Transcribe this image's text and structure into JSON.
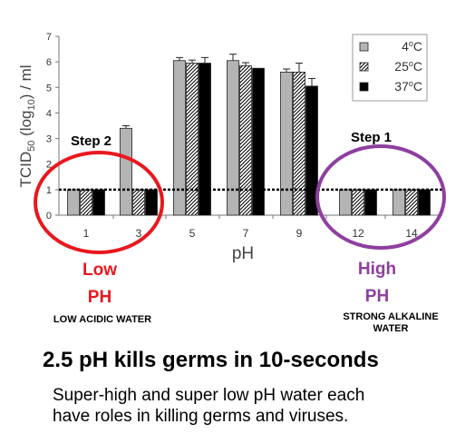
{
  "chart_data": {
    "type": "bar",
    "ylabel": "TCID50 (log10) / ml",
    "xlabel": "pH",
    "ylim": [
      0,
      7
    ],
    "yticks": [
      "0",
      "1",
      "2",
      "3",
      "4",
      "5",
      "6",
      "7"
    ],
    "categories": [
      "1",
      "3",
      "5",
      "7",
      "9",
      "12",
      "14"
    ],
    "series": [
      {
        "name": "4oC",
        "fill": "#b4b4b4",
        "pattern": "solid",
        "values": [
          1.0,
          3.4,
          6.05,
          6.05,
          5.6,
          1.0,
          1.0
        ],
        "errors": [
          0.0,
          0.1,
          0.12,
          0.25,
          0.12,
          0.0,
          0.0
        ]
      },
      {
        "name": "25oC",
        "fill": "#ffffff",
        "pattern": "hatch",
        "values": [
          1.0,
          1.0,
          5.95,
          5.85,
          5.6,
          1.0,
          1.0
        ],
        "errors": [
          0.0,
          0.0,
          0.12,
          0.12,
          0.35,
          0.0,
          0.0
        ]
      },
      {
        "name": "37oC",
        "fill": "#000000",
        "pattern": "solid",
        "values": [
          1.0,
          1.0,
          5.95,
          5.75,
          5.05,
          1.0,
          1.0
        ],
        "errors": [
          0.0,
          0.0,
          0.22,
          0.0,
          0.3,
          0.0,
          0.0
        ]
      }
    ],
    "reference_line": 1.0,
    "legend_position": "top-right",
    "grid": false
  },
  "annotations": {
    "step2": "Step 2",
    "step1": "Step 1",
    "low_ph_line1": "Low",
    "low_ph_line2": "PH",
    "high_ph_line1": "High",
    "high_ph_line2": "PH",
    "low_desc": "LOW ACIDIC WATER",
    "high_desc_line1": "STRONG ALKALINE",
    "high_desc_line2": "WATER",
    "headline": "2.5 pH kills germs in 10-seconds",
    "body_line1": "Super-high and super low pH water each",
    "body_line2": "have roles in killing germs and viruses."
  },
  "colors": {
    "low_circle": "#e8181e",
    "high_circle": "#8e3fa0"
  }
}
